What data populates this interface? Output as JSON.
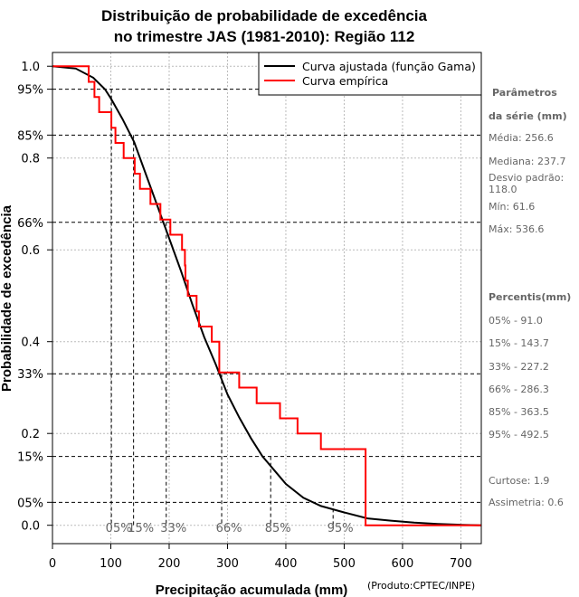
{
  "chart_data": {
    "type": "line",
    "title_line1": "Distribuição de probabilidade de excedência",
    "title_line2": "no trimestre JAS (1981-2010): Região 112",
    "xlabel": "Precipitação acumulada (mm)",
    "ylabel": "Probabilidade de excedência",
    "credit": "(Produto:CPTEC/INPE)",
    "xlim": [
      0,
      735
    ],
    "ylim": [
      -0.04,
      1.03
    ],
    "x_ticks": [
      0,
      100,
      200,
      300,
      400,
      500,
      600,
      700
    ],
    "x_tick_labels": [
      "0",
      "100",
      "200",
      "300",
      "400",
      "500",
      "600",
      "700"
    ],
    "y_ticks": [
      0.0,
      0.2,
      0.4,
      0.6,
      0.8,
      1.0
    ],
    "y_tick_labels": [
      "0.0",
      "0.2",
      "0.4",
      "0.6",
      "0.8",
      "1.0"
    ],
    "y_pct_ticks": [
      0.05,
      0.15,
      0.33,
      0.66,
      0.85,
      0.95
    ],
    "y_pct_labels": [
      "05%",
      "15%",
      "33%",
      "66%",
      "85%",
      "95%"
    ],
    "legend": {
      "position": "top-right",
      "fitted_label": "Curva ajustada (função Gama)",
      "empirical_label": "Curva empírica"
    },
    "colors": {
      "fitted": "#000000",
      "empirical": "#ff0000",
      "grid": "#bbbbbb",
      "marks": "#666666"
    },
    "percentile_markers": [
      {
        "label": "05%",
        "x": 101,
        "p": 0.95
      },
      {
        "label": "15%",
        "x": 139,
        "p": 0.85
      },
      {
        "label": "33%",
        "x": 195,
        "p": 0.66
      },
      {
        "label": "66%",
        "x": 290,
        "p": 0.33
      },
      {
        "label": "85%",
        "x": 374,
        "p": 0.15
      },
      {
        "label": "95%",
        "x": 481,
        "p": 0.05
      }
    ],
    "series": [
      {
        "name": "Curva ajustada (função Gama)",
        "x": [
          0,
          40,
          70,
          90,
          100,
          120,
          140,
          160,
          180,
          200,
          220,
          240,
          260,
          280,
          300,
          320,
          340,
          360,
          380,
          400,
          430,
          460,
          500,
          540,
          580,
          620,
          660,
          700,
          735
        ],
        "y": [
          1.0,
          0.995,
          0.975,
          0.95,
          0.93,
          0.885,
          0.835,
          0.765,
          0.695,
          0.625,
          0.555,
          0.48,
          0.41,
          0.35,
          0.285,
          0.235,
          0.19,
          0.15,
          0.12,
          0.09,
          0.06,
          0.042,
          0.028,
          0.015,
          0.01,
          0.006,
          0.003,
          0.001,
          0.0
        ]
      },
      {
        "name": "Curva empírica",
        "x": [
          0,
          62,
          62,
          72,
          72,
          80,
          80,
          101,
          101,
          108,
          108,
          122,
          122,
          141,
          141,
          150,
          150,
          168,
          168,
          185,
          185,
          202,
          202,
          222,
          222,
          227,
          227,
          228,
          228,
          232,
          232,
          247,
          247,
          251,
          251,
          273,
          273,
          286,
          286,
          320,
          320,
          350,
          350,
          390,
          390,
          420,
          420,
          460,
          460,
          536.6,
          536.6,
          735
        ],
        "y": [
          1.0,
          1.0,
          0.966,
          0.966,
          0.933,
          0.933,
          0.9,
          0.9,
          0.866,
          0.866,
          0.833,
          0.833,
          0.8,
          0.8,
          0.766,
          0.766,
          0.733,
          0.733,
          0.7,
          0.7,
          0.666,
          0.666,
          0.633,
          0.633,
          0.6,
          0.6,
          0.566,
          0.566,
          0.533,
          0.533,
          0.5,
          0.5,
          0.466,
          0.466,
          0.433,
          0.433,
          0.4,
          0.4,
          0.333,
          0.333,
          0.3,
          0.3,
          0.266,
          0.266,
          0.233,
          0.233,
          0.2,
          0.2,
          0.166,
          0.166,
          0.0,
          0.0
        ]
      }
    ]
  },
  "sidebar": {
    "params_title_line1": "Parâmetros",
    "params_title_line2": "da série (mm)",
    "media": "Média: 256.6",
    "mediana": "Mediana: 237.7",
    "desvio": "Desvio padrão: 118.0",
    "min": "Mín: 61.6",
    "max": "Máx: 536.6",
    "percentis_title": "Percentis(mm)",
    "p05": "05% - 91.0",
    "p15": "15% - 143.7",
    "p33": "33% - 227.2",
    "p66": "66% - 286.3",
    "p85": "85% - 363.5",
    "p95": "95% - 492.5",
    "curtose": "Curtose: 1.9",
    "assimetria": "Assimetria: 0.6"
  }
}
